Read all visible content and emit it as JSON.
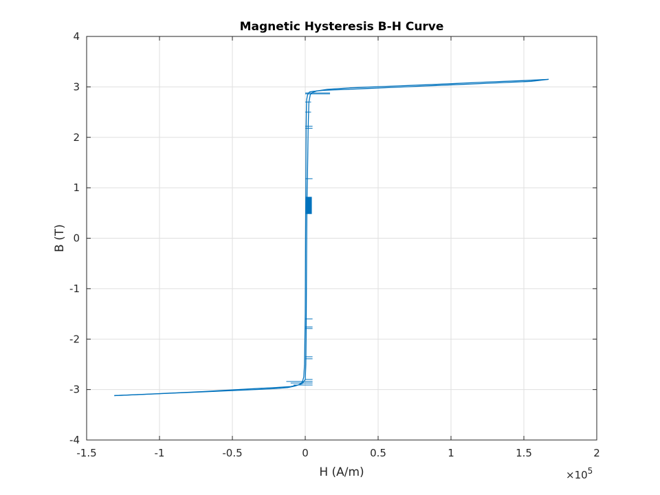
{
  "chart_data": {
    "type": "line",
    "title": "Magnetic Hysteresis B-H Curve",
    "xlabel": "H (A/m)",
    "ylabel": "B (T)",
    "x_exponent_label": "×10",
    "x_exponent_power": "5",
    "x_scale": 100000,
    "xlim": [
      -1.5,
      2
    ],
    "ylim": [
      -4,
      4
    ],
    "x_ticks": [
      "-1.5",
      "-1",
      "-0.5",
      "0",
      "0.5",
      "1",
      "1.5",
      "2"
    ],
    "y_ticks": [
      "-4",
      "-3",
      "-2",
      "-1",
      "0",
      "1",
      "2",
      "3",
      "4"
    ],
    "grid": true,
    "series_color": "#0072BD",
    "series": [
      {
        "x": [
          -1.31,
          -1.1,
          -0.9,
          -0.7,
          -0.5,
          -0.3,
          -0.2,
          -0.12,
          -0.07,
          -0.04,
          -0.02,
          -0.01,
          -0.005,
          0.0,
          0.002,
          0.004,
          0.006,
          0.008,
          0.01,
          0.015,
          0.02,
          0.03,
          0.05,
          0.08,
          0.12,
          0.2,
          0.4,
          0.6,
          0.8,
          1.0,
          1.2,
          1.4,
          1.55,
          1.67
        ],
        "y": [
          -3.12,
          -3.095,
          -3.07,
          -3.045,
          -3.02,
          -2.995,
          -2.98,
          -2.96,
          -2.93,
          -2.9,
          -2.85,
          -2.75,
          -2.5,
          -1.5,
          0.0,
          1.0,
          2.2,
          2.6,
          2.75,
          2.83,
          2.87,
          2.9,
          2.91,
          2.92,
          2.93,
          2.94,
          2.965,
          2.99,
          3.015,
          3.04,
          3.065,
          3.09,
          3.11,
          3.15
        ]
      },
      {
        "x": [
          1.67,
          1.5,
          1.2,
          0.9,
          0.6,
          0.3,
          0.15,
          0.08,
          0.05,
          0.035,
          0.025,
          0.02,
          0.015,
          0.012,
          0.01,
          0.008,
          0.006,
          0.004,
          0.0,
          -0.02,
          -0.05,
          -0.1,
          -0.2,
          -0.4,
          -0.7,
          -1.0,
          -1.31
        ],
        "y": [
          3.15,
          3.125,
          3.09,
          3.05,
          3.015,
          2.98,
          2.95,
          2.92,
          2.89,
          2.85,
          2.7,
          2.2,
          1.2,
          0.8,
          0.0,
          -1.0,
          -2.0,
          -2.5,
          -2.8,
          -2.88,
          -2.91,
          -2.94,
          -2.96,
          -2.99,
          -3.04,
          -3.08,
          -3.12
        ]
      }
    ],
    "steps": [
      {
        "y": 2.88,
        "x0": 0.0,
        "x1": 0.17
      },
      {
        "y": 2.86,
        "x0": 0.0,
        "x1": 0.17
      },
      {
        "y": 2.7,
        "x0": 0.0,
        "x1": 0.04
      },
      {
        "y": 2.5,
        "x0": 0.0,
        "x1": 0.04
      },
      {
        "y": 2.22,
        "x0": 0.0,
        "x1": 0.05
      },
      {
        "y": 2.18,
        "x0": 0.0,
        "x1": 0.05
      },
      {
        "y": 1.18,
        "x0": 0.0,
        "x1": 0.05
      },
      {
        "y": -1.6,
        "x0": 0.0,
        "x1": 0.05
      },
      {
        "y": -1.76,
        "x0": 0.0,
        "x1": 0.05
      },
      {
        "y": -1.79,
        "x0": 0.0,
        "x1": 0.05
      },
      {
        "y": -2.35,
        "x0": 0.0,
        "x1": 0.05
      },
      {
        "y": -2.39,
        "x0": 0.0,
        "x1": 0.05
      },
      {
        "y": -2.8,
        "x0": 0.0,
        "x1": 0.05
      },
      {
        "y": -2.84,
        "x0": -0.13,
        "x1": 0.05
      },
      {
        "y": -2.87,
        "x0": -0.1,
        "x1": 0.05
      },
      {
        "y": -2.91,
        "x0": -0.08,
        "x1": 0.05
      }
    ],
    "block": {
      "x0": 0.005,
      "x1": 0.045,
      "y0": 0.48,
      "y1": 0.82
    }
  }
}
